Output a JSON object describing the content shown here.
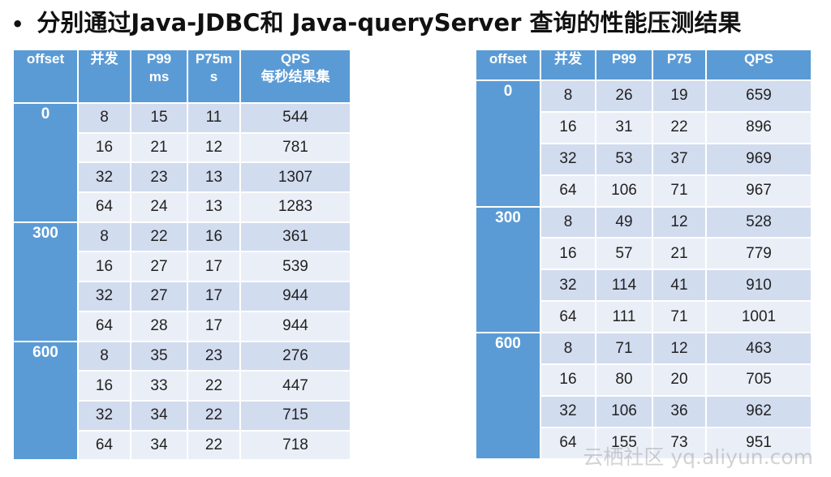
{
  "title": {
    "bullet": "•",
    "text": "分别通过Java-JDBC和 Java-queryServer 查询的性能压测结果"
  },
  "left_table": {
    "headers": [
      "offset",
      "并发",
      "P99\nms",
      "P75m\ns",
      "QPS\n每秒结果集"
    ],
    "groups": [
      {
        "offset": "0",
        "rows": [
          [
            "8",
            "15",
            "11",
            "544"
          ],
          [
            "16",
            "21",
            "12",
            "781"
          ],
          [
            "32",
            "23",
            "13",
            "1307"
          ],
          [
            "64",
            "24",
            "13",
            "1283"
          ]
        ]
      },
      {
        "offset": "300",
        "rows": [
          [
            "8",
            "22",
            "16",
            "361"
          ],
          [
            "16",
            "27",
            "17",
            "539"
          ],
          [
            "32",
            "27",
            "17",
            "944"
          ],
          [
            "64",
            "28",
            "17",
            "944"
          ]
        ]
      },
      {
        "offset": "600",
        "rows": [
          [
            "8",
            "35",
            "23",
            "276"
          ],
          [
            "16",
            "33",
            "22",
            "447"
          ],
          [
            "32",
            "34",
            "22",
            "715"
          ],
          [
            "64",
            "34",
            "22",
            "718"
          ]
        ]
      }
    ]
  },
  "right_table": {
    "headers": [
      "offset",
      "并发",
      "P99",
      "P75",
      "QPS"
    ],
    "groups": [
      {
        "offset": "0",
        "rows": [
          [
            "8",
            "26",
            "19",
            "659"
          ],
          [
            "16",
            "31",
            "22",
            "896"
          ],
          [
            "32",
            "53",
            "37",
            "969"
          ],
          [
            "64",
            "106",
            "71",
            "967"
          ]
        ]
      },
      {
        "offset": "300",
        "rows": [
          [
            "8",
            "49",
            "12",
            "528"
          ],
          [
            "16",
            "57",
            "21",
            "779"
          ],
          [
            "32",
            "114",
            "41",
            "910"
          ],
          [
            "64",
            "111",
            "71",
            "1001"
          ]
        ]
      },
      {
        "offset": "600",
        "rows": [
          [
            "8",
            "71",
            "12",
            "463"
          ],
          [
            "16",
            "80",
            "20",
            "705"
          ],
          [
            "32",
            "106",
            "36",
            "962"
          ],
          [
            "64",
            "155",
            "73",
            "951"
          ]
        ]
      }
    ]
  },
  "watermark": "云栖社区 yq.aliyun.com"
}
